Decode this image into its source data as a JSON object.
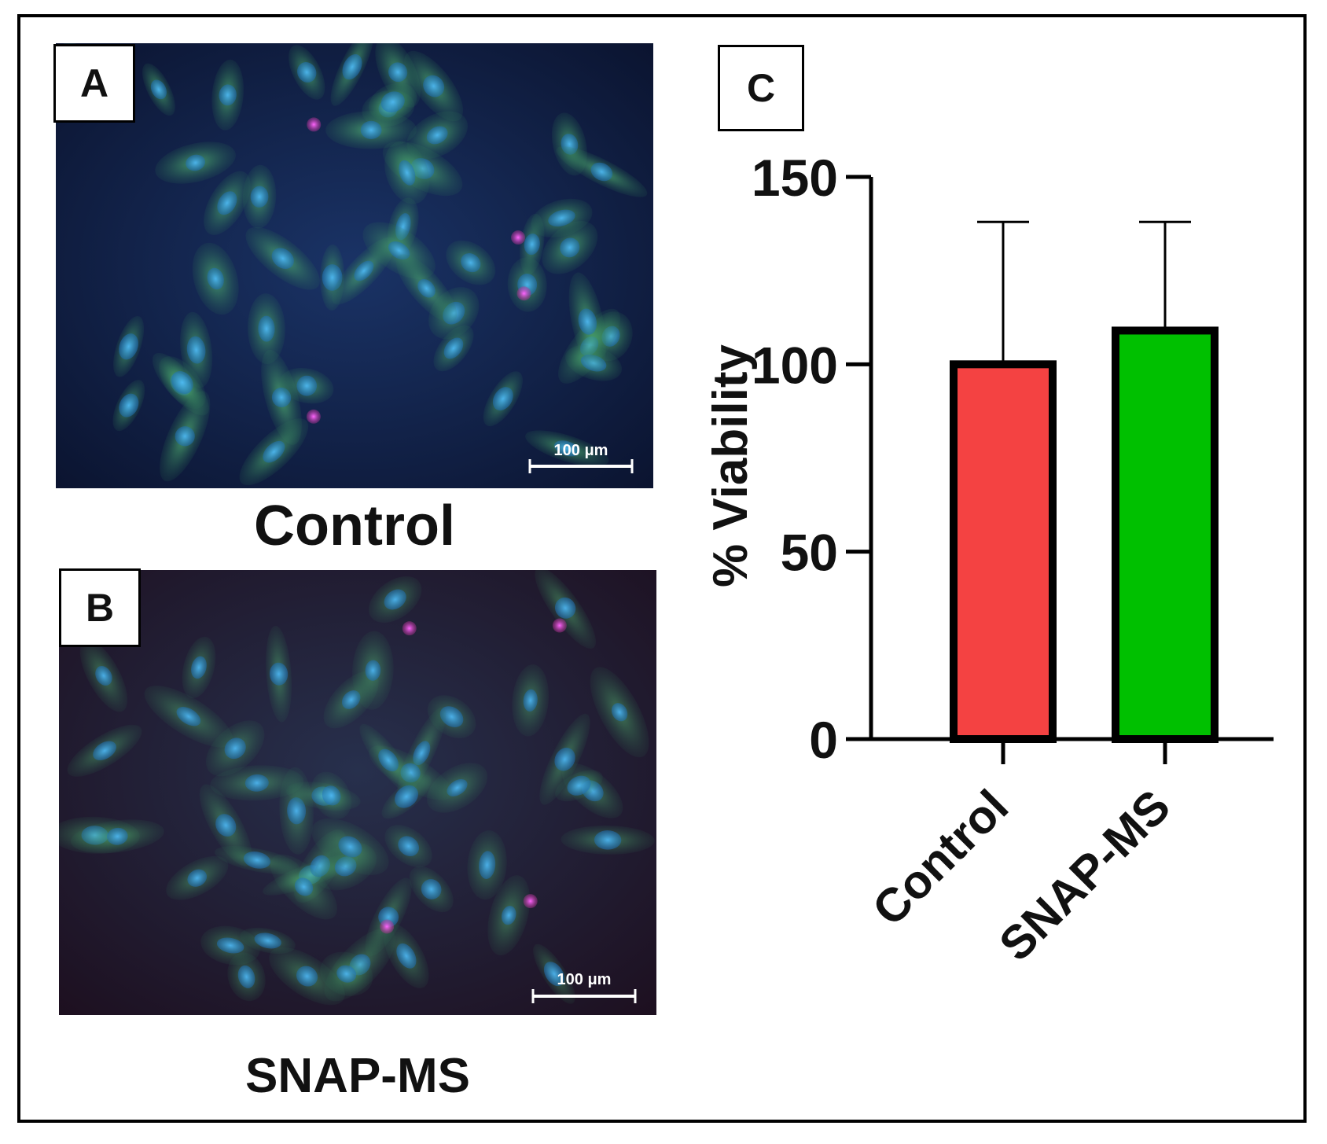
{
  "figure": {
    "panel_a": {
      "label": "A",
      "caption": "Control",
      "scale_bar": "100 μm"
    },
    "panel_b": {
      "label": "B",
      "caption": "SNAP-MS",
      "scale_bar": "100 μm"
    },
    "panel_c": {
      "label": "C"
    }
  },
  "chart_data": {
    "type": "bar",
    "categories": [
      "Control",
      "SNAP-MS"
    ],
    "values": [
      100,
      109
    ],
    "error_upper": [
      138,
      138
    ],
    "bar_colors": [
      "#f44242",
      "#00c000"
    ],
    "ylabel": "% Viability",
    "xlabel": "",
    "ylim": [
      0,
      150
    ],
    "yticks": [
      0,
      50,
      100,
      150
    ],
    "grid": false
  }
}
